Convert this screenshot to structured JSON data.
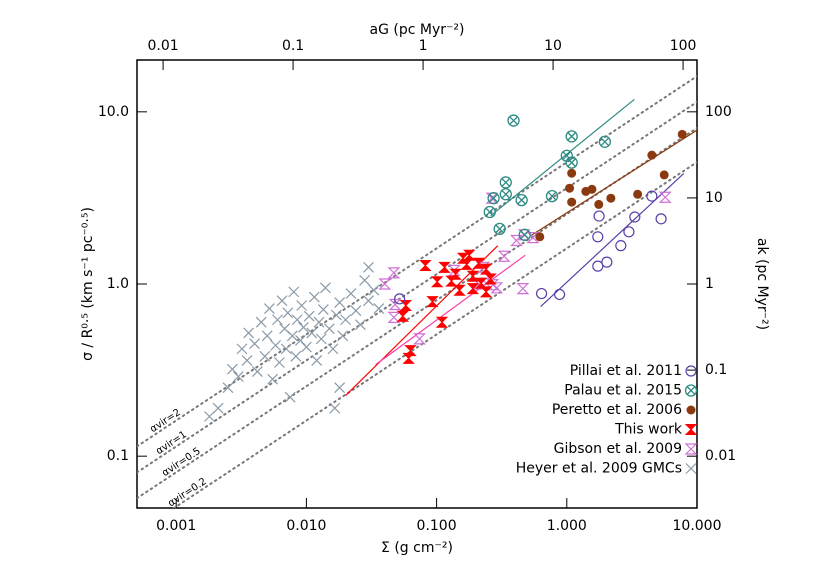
{
  "chart_data": {
    "type": "scatter",
    "xlabel": "Σ (g cm⁻²)",
    "ylabel": "σ / R⁰·⁵ (km s⁻¹ pc⁻⁰·⁵)",
    "x2label": "aG (pc Myr⁻²)",
    "y2label": "ak (pc Myr⁻²)",
    "xscale": "log",
    "yscale": "log",
    "xlim": [
      0.0005,
      10
    ],
    "ylim": [
      0.05,
      20
    ],
    "x2lim": [
      0.0063,
      128
    ],
    "y2lim": [
      0.0025,
      400
    ],
    "xticks": [
      {
        "value": 0.001,
        "label": "0.001"
      },
      {
        "value": 0.01,
        "label": "0.010"
      },
      {
        "value": 0.1,
        "label": "0.100"
      },
      {
        "value": 1,
        "label": "1.000"
      },
      {
        "value": 10,
        "label": "10.000"
      }
    ],
    "yticks": [
      0.1,
      {
        "value": 1,
        "label": "1.0"
      },
      {
        "value": 10,
        "label": "10.0"
      }
    ],
    "x2ticks": [
      0.01,
      0.1,
      1,
      10,
      100
    ],
    "y2ticks": [
      0.01,
      0.1,
      1,
      10,
      100
    ],
    "legend": "lower right",
    "series": [
      {
        "name": "Pillai et al. 2011",
        "color": "#5b3fa8",
        "marker": "open-circle",
        "x": [
          0.052,
          0.64,
          0.88,
          1.73,
          2.03,
          2.6,
          3.0,
          3.33,
          5.3,
          1.73,
          1.77,
          4.5
        ],
        "values": [
          0.82,
          0.88,
          0.87,
          1.27,
          1.34,
          1.67,
          2.01,
          2.45,
          2.39,
          1.88,
          2.48,
          3.24
        ]
      },
      {
        "name": "Palau et al. 2015",
        "color": "#2e8b83",
        "marker": "circle-x",
        "x": [
          0.39,
          1.09,
          1.0,
          1.09,
          1.96,
          0.34,
          0.34,
          0.274,
          0.256,
          0.305,
          0.45,
          0.77,
          0.475
        ],
        "values": [
          8.9,
          7.2,
          5.56,
          5.07,
          6.7,
          3.89,
          3.32,
          3.15,
          2.62,
          2.09,
          3.07,
          3.24,
          1.93
        ]
      },
      {
        "name": "Peretto et al. 2006",
        "color": "#8b3a10",
        "marker": "filled-circle",
        "x": [
          7.7,
          4.5,
          5.6,
          1.09,
          1.4,
          1.05,
          1.56,
          1.76,
          2.18,
          3.5,
          1.09,
          0.62
        ],
        "values": [
          7.4,
          5.6,
          4.3,
          4.4,
          3.45,
          3.6,
          3.55,
          2.9,
          3.15,
          3.32,
          2.99,
          1.88
        ]
      },
      {
        "name": "This work",
        "color": "#ff0000",
        "marker": "bowtie",
        "x": [
          0.082,
          0.101,
          0.093,
          0.11,
          0.063,
          0.061,
          0.058,
          0.055,
          0.16,
          0.17,
          0.19,
          0.15,
          0.14,
          0.21,
          0.24,
          0.26,
          0.19,
          0.13,
          0.22,
          0.24,
          0.115,
          0.178
        ],
        "values": [
          1.28,
          1.03,
          0.79,
          0.6,
          0.41,
          0.37,
          0.75,
          0.65,
          1.41,
          1.3,
          1.11,
          0.92,
          1.14,
          1.32,
          1.22,
          1.07,
          0.94,
          1.04,
          1.01,
          0.9,
          1.25,
          1.47
        ]
      },
      {
        "name": "Gibson et al. 2009",
        "color": "#d070d8",
        "marker": "hourglass",
        "x": [
          0.04,
          0.047,
          0.047,
          0.048,
          0.074,
          0.23,
          0.21,
          0.24,
          0.27,
          0.29,
          0.266,
          0.41,
          0.47,
          0.55,
          0.46,
          5.7,
          0.33,
          0.137
        ],
        "values": [
          1.0,
          1.16,
          0.64,
          0.76,
          0.48,
          1.25,
          1.0,
          1.01,
          0.99,
          0.95,
          3.15,
          1.79,
          1.93,
          1.86,
          0.94,
          3.19,
          1.45,
          1.2
        ]
      },
      {
        "name": "Heyer et al. 2009 GMCs",
        "color": "#8a9aa8",
        "marker": "x",
        "x": [
          0.0018,
          0.0021,
          0.0025,
          0.0027,
          0.003,
          0.0032,
          0.0035,
          0.0036,
          0.004,
          0.0042,
          0.0045,
          0.0048,
          0.005,
          0.0052,
          0.0055,
          0.0058,
          0.006,
          0.0062,
          0.0065,
          0.0068,
          0.007,
          0.0072,
          0.0075,
          0.0078,
          0.008,
          0.0083,
          0.0085,
          0.009,
          0.0092,
          0.0095,
          0.01,
          0.0105,
          0.011,
          0.0115,
          0.012,
          0.0125,
          0.013,
          0.0135,
          0.014,
          0.015,
          0.016,
          0.017,
          0.018,
          0.019,
          0.02,
          0.022,
          0.024,
          0.026,
          0.028,
          0.03,
          0.033,
          0.036,
          0.03,
          0.018,
          0.0165
        ],
        "values": [
          0.17,
          0.19,
          0.25,
          0.32,
          0.29,
          0.42,
          0.36,
          0.52,
          0.45,
          0.31,
          0.6,
          0.38,
          0.5,
          0.72,
          0.28,
          0.44,
          0.62,
          0.35,
          0.8,
          0.55,
          0.42,
          0.68,
          0.22,
          0.5,
          0.9,
          0.38,
          0.62,
          0.47,
          0.75,
          0.56,
          0.43,
          0.65,
          0.52,
          0.84,
          0.36,
          0.6,
          0.48,
          0.71,
          0.95,
          0.55,
          0.42,
          0.66,
          0.78,
          0.5,
          0.62,
          0.88,
          0.7,
          0.58,
          1.05,
          0.8,
          0.92,
          0.72,
          1.25,
          0.25,
          0.19
        ]
      }
    ],
    "fits": [
      {
        "color": "#2e8b83",
        "x": [
          0.26,
          3.3
        ],
        "values": [
          2.49,
          11.8
        ]
      },
      {
        "color": "#8b3a10",
        "x": [
          0.53,
          10
        ],
        "values": [
          1.91,
          7.83
        ]
      },
      {
        "color": "#5b3fa8",
        "x": [
          0.63,
          7.9
        ],
        "values": [
          0.74,
          4.38
        ]
      },
      {
        "color": "#ff0000",
        "x": [
          0.02,
          0.295
        ],
        "values": [
          0.225,
          1.67
        ]
      },
      {
        "color": "#ff3caa",
        "x": [
          0.034,
          0.48
        ],
        "values": [
          0.34,
          1.47
        ]
      }
    ],
    "reference_lines": [
      {
        "label": "αvir=2",
        "x": [
          0.0005,
          10
        ],
        "values": [
          0.114,
          16.1
        ]
      },
      {
        "label": "αvir=1",
        "x": [
          0.0005,
          10
        ],
        "values": [
          0.0805,
          11.4
        ]
      },
      {
        "label": "αvir=0.5",
        "x": [
          0.0005,
          10
        ],
        "values": [
          0.057,
          8.05
        ]
      },
      {
        "label": "αvir=0.2",
        "x": [
          0.0005,
          10
        ],
        "values": [
          0.036,
          5.1
        ]
      }
    ]
  }
}
